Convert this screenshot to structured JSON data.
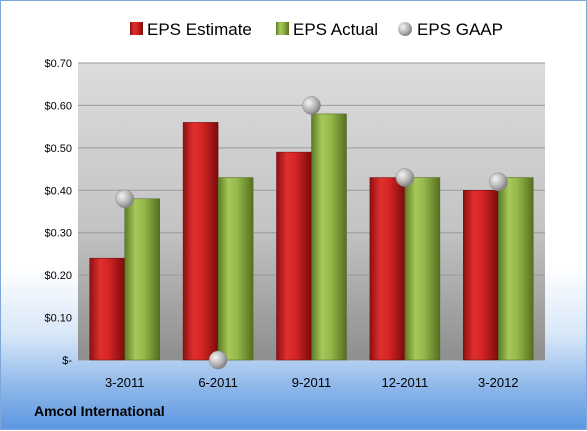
{
  "company_label": "Amcol International",
  "colors": {
    "estimate": "#cc2222",
    "actual": "#8cb040",
    "gaap": "#b8b8b8"
  },
  "chart_data": {
    "type": "bar",
    "categories": [
      "3-2011",
      "6-2011",
      "9-2011",
      "12-2011",
      "3-2012"
    ],
    "series": [
      {
        "name": "EPS Estimate",
        "type": "bar",
        "values": [
          0.24,
          0.56,
          0.49,
          0.43,
          0.4
        ]
      },
      {
        "name": "EPS Actual",
        "type": "bar",
        "values": [
          0.38,
          0.43,
          0.58,
          0.43,
          0.43
        ]
      },
      {
        "name": "EPS GAAP",
        "type": "scatter",
        "values": [
          0.38,
          0.0,
          0.6,
          0.43,
          0.42
        ]
      }
    ],
    "y_ticks": [
      "$-",
      "$0.10",
      "$0.20",
      "$0.30",
      "$0.40",
      "$0.50",
      "$0.60",
      "$0.70"
    ],
    "ylim": [
      0,
      0.7
    ],
    "legend_position": "top",
    "grid": true
  }
}
